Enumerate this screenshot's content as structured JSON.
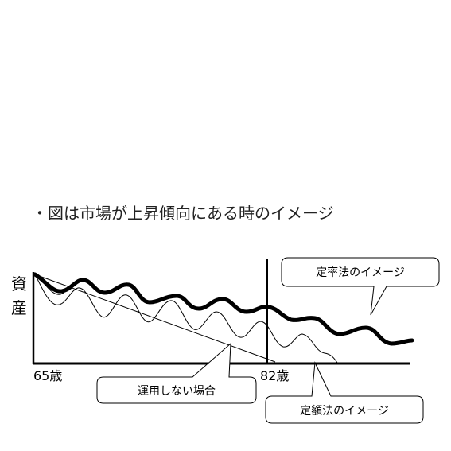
{
  "caption": "・図は市場が上昇傾向にある時のイメージ",
  "y_axis_label": [
    "資",
    "産"
  ],
  "x_ticks": {
    "start": "65歳",
    "end": "82歳"
  },
  "callouts": {
    "fixed_rate": "定率法のイメージ",
    "no_investment": "運用しない場合",
    "fixed_amount": "定額法のイメージ"
  },
  "colors": {
    "line": "#000000",
    "box_border": "#000000",
    "background": "#ffffff"
  }
}
